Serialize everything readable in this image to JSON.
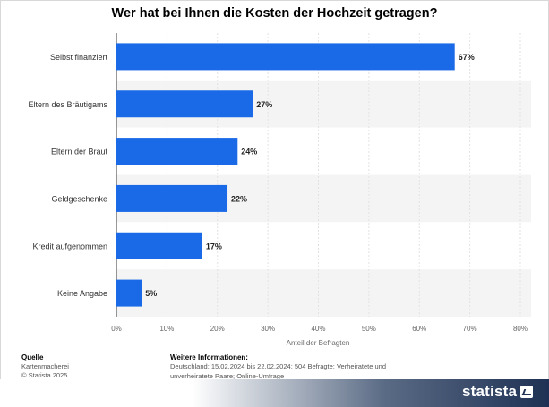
{
  "chart_data": {
    "type": "bar",
    "orientation": "horizontal",
    "title": "Wer hat bei Ihnen die Kosten der Hochzeit getragen?",
    "xlabel": "Anteil der Befragten",
    "ylabel": "",
    "xlim": [
      0,
      80
    ],
    "x_ticks": [
      "0%",
      "10%",
      "20%",
      "30%",
      "40%",
      "50%",
      "60%",
      "70%",
      "80%"
    ],
    "x_tick_values": [
      0,
      10,
      20,
      30,
      40,
      50,
      60,
      70,
      80
    ],
    "categories": [
      "Selbst finanziert",
      "Eltern des Bräutigams",
      "Eltern der Braut",
      "Geldgeschenke",
      "Kredit aufgenommen",
      "Keine Angabe"
    ],
    "values": [
      67,
      27,
      24,
      22,
      17,
      5
    ],
    "value_labels": [
      "67%",
      "27%",
      "24%",
      "22%",
      "17%",
      "5%"
    ],
    "bar_color": "#1a6ae8",
    "grid": true,
    "row_stripe_colors": [
      "#ffffff",
      "#f4f4f4"
    ]
  },
  "footer": {
    "source_heading": "Quelle",
    "source_lines": [
      "Kartenmacherei",
      "© Statista 2025"
    ],
    "info_heading": "Weitere Informationen:",
    "info_text": "Deutschland; 15.02.2024 bis 22.02.2024; 504 Befragte; Verheiratete und unverheiratete Paare; Online-Umfrage",
    "logo_text": "statista"
  }
}
